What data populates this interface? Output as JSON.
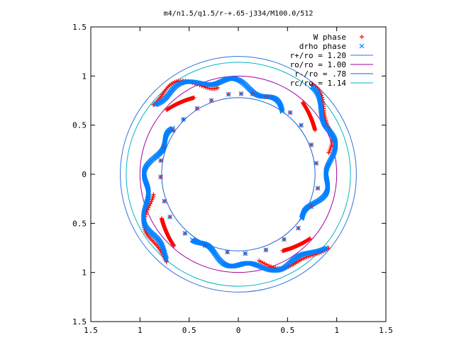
{
  "chart_data": {
    "type": "scatter",
    "title": "m4/n1.5/q1.5/r-+.65-j334/M100.0/512",
    "xlabel": "",
    "ylabel": "",
    "xlim": [
      -1.5,
      1.5
    ],
    "ylim": [
      -1.5,
      1.5
    ],
    "x_tick_labels": [
      "1.5",
      "1",
      "0.5",
      "0",
      "0.5",
      "1",
      "1.5"
    ],
    "y_tick_labels": [
      "1.5",
      "1",
      "0.5",
      "0",
      "0.5",
      "1",
      "1.5"
    ],
    "legend_position": "top-right",
    "grid": false,
    "series": [
      {
        "name": "W phase",
        "kind": "points",
        "marker": "plus",
        "color": "#ff0000"
      },
      {
        "name": "drho phase",
        "kind": "points",
        "marker": "cross",
        "color": "#0080ff"
      },
      {
        "name": "r+/ro = 1.20",
        "kind": "circle",
        "radius": 1.2,
        "color": "#3070e0"
      },
      {
        "name": "ro/ro = 1.00",
        "kind": "circle",
        "radius": 1.0,
        "color": "#a000a0"
      },
      {
        "name": "r-/ro = .78",
        "kind": "circle",
        "radius": 0.78,
        "color": "#2060d0"
      },
      {
        "name": "rc/ro = 1.14",
        "kind": "circle",
        "radius": 1.14,
        "color": "#00b8c0"
      }
    ],
    "spiral_arms": {
      "count": 4,
      "r_inner": 0.78,
      "r_outer": 1.13,
      "start_angles_deg": [
        55,
        145,
        235,
        325
      ]
    },
    "inner_markers": [
      {
        "angle_deg": 97,
        "r": 0.82
      },
      {
        "angle_deg": 88,
        "r": 0.82
      },
      {
        "angle_deg": 80,
        "r": 0.83
      },
      {
        "angle_deg": 70,
        "r": 0.84
      },
      {
        "angle_deg": 110,
        "r": 0.8
      },
      {
        "angle_deg": 122,
        "r": 0.79
      },
      {
        "angle_deg": 135,
        "r": 0.79
      },
      {
        "angle_deg": 146,
        "r": 0.8
      },
      {
        "angle_deg": 160,
        "r": 0.81
      },
      {
        "angle_deg": 170,
        "r": 0.8
      },
      {
        "angle_deg": 182,
        "r": 0.79
      },
      {
        "angle_deg": 200,
        "r": 0.8
      },
      {
        "angle_deg": 212,
        "r": 0.82
      },
      {
        "angle_deg": 228,
        "r": 0.81
      },
      {
        "angle_deg": 245,
        "r": 0.8
      },
      {
        "angle_deg": 262,
        "r": 0.8
      },
      {
        "angle_deg": 275,
        "r": 0.81
      },
      {
        "angle_deg": 290,
        "r": 0.82
      },
      {
        "angle_deg": 305,
        "r": 0.81
      },
      {
        "angle_deg": 318,
        "r": 0.82
      },
      {
        "angle_deg": 336,
        "r": 0.81
      },
      {
        "angle_deg": 350,
        "r": 0.82
      },
      {
        "angle_deg": 8,
        "r": 0.8
      },
      {
        "angle_deg": 22,
        "r": 0.8
      },
      {
        "angle_deg": 38,
        "r": 0.81
      },
      {
        "angle_deg": 50,
        "r": 0.82
      }
    ]
  }
}
